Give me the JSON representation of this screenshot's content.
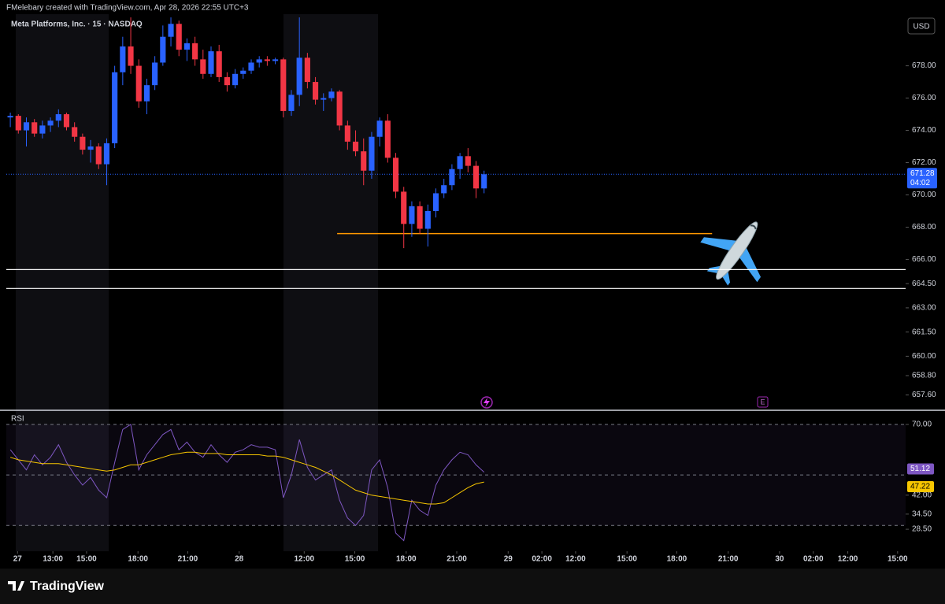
{
  "header": "FMelebary created with TradingView.com, Apr 28, 2026 22:55 UTC+3",
  "brand": "TradingView",
  "chart_data": [
    {
      "type": "candlestick",
      "title": "Meta Platforms, Inc. · 15 · NASDAQ",
      "currency": "USD",
      "up_color": "#2962ff",
      "down_color": "#f23645",
      "ohlc": [
        [
          674.8,
          675.1,
          674.2,
          674.9
        ],
        [
          674.9,
          675.0,
          673.8,
          674.0
        ],
        [
          674.0,
          674.8,
          673.0,
          674.5
        ],
        [
          674.5,
          674.7,
          673.6,
          673.8
        ],
        [
          673.8,
          674.6,
          673.5,
          674.3
        ],
        [
          674.3,
          674.8,
          673.9,
          674.6
        ],
        [
          674.6,
          675.3,
          674.2,
          675.0
        ],
        [
          675.0,
          675.1,
          674.0,
          674.2
        ],
        [
          674.2,
          674.5,
          673.3,
          673.6
        ],
        [
          673.6,
          673.8,
          672.5,
          672.8
        ],
        [
          672.8,
          673.4,
          672.0,
          673.0
        ],
        [
          673.0,
          673.2,
          671.6,
          671.9
        ],
        [
          671.9,
          673.5,
          670.6,
          673.2
        ],
        [
          673.2,
          678.0,
          672.9,
          677.6
        ],
        [
          677.6,
          679.8,
          676.8,
          679.2
        ],
        [
          679.2,
          681.0,
          677.5,
          678.0
        ],
        [
          678.0,
          678.4,
          675.4,
          675.8
        ],
        [
          675.8,
          677.2,
          675.0,
          676.8
        ],
        [
          676.8,
          678.6,
          676.5,
          678.2
        ],
        [
          678.2,
          680.5,
          678.0,
          679.8
        ],
        [
          679.8,
          681.0,
          679.2,
          680.6
        ],
        [
          680.6,
          680.8,
          678.6,
          679.0
        ],
        [
          679.0,
          679.7,
          678.3,
          679.4
        ],
        [
          679.4,
          679.8,
          678.0,
          678.4
        ],
        [
          678.4,
          679.0,
          677.2,
          677.5
        ],
        [
          677.5,
          679.2,
          677.3,
          678.9
        ],
        [
          678.9,
          679.3,
          677.0,
          677.3
        ],
        [
          677.3,
          677.6,
          676.4,
          676.8
        ],
        [
          676.8,
          677.8,
          676.6,
          677.5
        ],
        [
          677.5,
          677.9,
          677.2,
          677.7
        ],
        [
          677.7,
          678.4,
          677.5,
          678.2
        ],
        [
          678.2,
          678.6,
          677.9,
          678.4
        ],
        [
          678.4,
          678.6,
          678.0,
          678.3
        ],
        [
          678.3,
          678.5,
          678.1,
          678.4
        ],
        [
          678.4,
          678.5,
          674.8,
          675.2
        ],
        [
          675.2,
          676.5,
          674.9,
          676.2
        ],
        [
          676.2,
          681.0,
          675.5,
          678.5
        ],
        [
          678.5,
          678.8,
          676.6,
          677.0
        ],
        [
          677.0,
          677.3,
          675.6,
          675.9
        ],
        [
          675.9,
          676.3,
          675.2,
          676.0
        ],
        [
          676.0,
          676.6,
          675.8,
          676.4
        ],
        [
          676.4,
          676.5,
          674.0,
          674.3
        ],
        [
          674.3,
          674.6,
          672.8,
          673.3
        ],
        [
          673.3,
          674.0,
          672.4,
          672.7
        ],
        [
          672.7,
          673.5,
          670.6,
          671.5
        ],
        [
          671.5,
          673.9,
          671.0,
          673.6
        ],
        [
          673.6,
          674.8,
          673.0,
          674.6
        ],
        [
          674.6,
          675.0,
          672.0,
          672.3
        ],
        [
          672.3,
          672.6,
          669.8,
          670.2
        ],
        [
          670.2,
          670.5,
          666.7,
          668.2
        ],
        [
          668.2,
          669.6,
          667.4,
          669.3
        ],
        [
          669.3,
          669.6,
          667.6,
          667.9
        ],
        [
          667.9,
          669.4,
          666.8,
          669.0
        ],
        [
          669.0,
          670.4,
          668.6,
          670.1
        ],
        [
          670.1,
          671.0,
          669.8,
          670.6
        ],
        [
          670.6,
          671.9,
          670.3,
          671.6
        ],
        [
          671.6,
          672.6,
          671.0,
          672.4
        ],
        [
          672.4,
          672.9,
          671.4,
          671.8
        ],
        [
          671.8,
          672.1,
          669.8,
          670.4
        ],
        [
          670.4,
          671.5,
          670.1,
          671.28
        ]
      ],
      "xlim": [
        -0.5,
        111.5
      ],
      "xticks": [
        {
          "value": 0.9,
          "label": "27"
        },
        {
          "value": 5.3,
          "label": "13:00"
        },
        {
          "value": 9.5,
          "label": "15:00"
        },
        {
          "value": 15.9,
          "label": "18:00"
        },
        {
          "value": 22.1,
          "label": "21:00"
        },
        {
          "value": 28.5,
          "label": "28"
        },
        {
          "value": 36.6,
          "label": "12:00"
        },
        {
          "value": 42.9,
          "label": "15:00"
        },
        {
          "value": 49.3,
          "label": "18:00"
        },
        {
          "value": 55.6,
          "label": "21:00"
        },
        {
          "value": 62,
          "label": "29"
        },
        {
          "value": 66.2,
          "label": "02:00"
        },
        {
          "value": 70.4,
          "label": "12:00"
        },
        {
          "value": 76.8,
          "label": "15:00"
        },
        {
          "value": 83,
          "label": "18:00"
        },
        {
          "value": 89.4,
          "label": "21:00"
        },
        {
          "value": 95.8,
          "label": "30"
        },
        {
          "value": 100,
          "label": "02:00"
        },
        {
          "value": 104.3,
          "label": "12:00"
        },
        {
          "value": 110.5,
          "label": "15:00"
        }
      ],
      "ylim": [
        656.7,
        681.2
      ],
      "yticks": [
        {
          "value": 678,
          "label": "678.00"
        },
        {
          "value": 676,
          "label": "676.00"
        },
        {
          "value": 674,
          "label": "674.00"
        },
        {
          "value": 672,
          "label": "672.00"
        },
        {
          "value": 670,
          "label": "670.00"
        },
        {
          "value": 668,
          "label": "668.00"
        },
        {
          "value": 666,
          "label": "666.00"
        },
        {
          "value": 664.5,
          "label": "664.50"
        },
        {
          "value": 663,
          "label": "663.00"
        },
        {
          "value": 661.5,
          "label": "661.50"
        },
        {
          "value": 660,
          "label": "660.00"
        },
        {
          "value": 658.8,
          "label": "658.80"
        },
        {
          "value": 657.6,
          "label": "657.60"
        }
      ],
      "last_price": 671.28,
      "countdown": "04:02",
      "last_color": "#2962ff",
      "hlines": [
        {
          "value": 665.37,
          "color": "#ffffff"
        },
        {
          "value": 664.2,
          "color": "#ffffff"
        }
      ],
      "segment": {
        "value": 667.6,
        "x": [
          40.7,
          87.4
        ],
        "color": "#ff9800"
      },
      "event_label": "E"
    },
    {
      "type": "line",
      "title": "RSI",
      "ylim": [
        19.8,
        75.3
      ],
      "yticks": [
        {
          "value": 70,
          "label": "70.00"
        },
        {
          "value": 42,
          "label": "42.00"
        },
        {
          "value": 34.5,
          "label": "34.50"
        },
        {
          "value": 28.5,
          "label": "28.50"
        }
      ],
      "levels": [
        70,
        50,
        30
      ],
      "series": [
        {
          "color": "#7e57c2",
          "values": [
            60,
            56,
            52,
            58,
            54,
            57,
            62,
            55,
            50,
            46,
            49,
            44,
            41,
            55,
            68,
            70,
            52,
            58,
            62,
            66,
            68,
            60,
            63,
            59,
            57,
            62,
            58,
            55,
            59,
            60,
            62,
            61,
            61,
            60,
            41,
            50,
            64,
            53,
            48,
            50,
            52,
            40,
            33,
            30,
            34,
            52,
            56,
            45,
            27,
            24,
            40,
            36,
            34,
            46,
            52,
            56,
            59,
            58,
            54,
            51.12
          ]
        },
        {
          "color": "#f7c600",
          "values": [
            57,
            56,
            55.5,
            55,
            54.5,
            54.5,
            54.5,
            54,
            53.5,
            53,
            52.5,
            52,
            51.5,
            52,
            53,
            54,
            54,
            55,
            56,
            57,
            58,
            58.5,
            59,
            59,
            58.5,
            58.5,
            58.5,
            58,
            58,
            58,
            58,
            58,
            57.5,
            57.5,
            57,
            56,
            55,
            54,
            53,
            51.5,
            50,
            48,
            46,
            44,
            43,
            42,
            41.5,
            41,
            40.5,
            40,
            39.5,
            39,
            38.5,
            38.5,
            39,
            41,
            43,
            45,
            46.5,
            47.22
          ]
        }
      ]
    }
  ]
}
